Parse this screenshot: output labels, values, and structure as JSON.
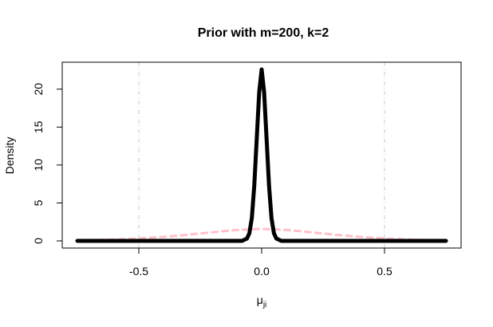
{
  "chart_data": {
    "type": "line",
    "title": "Prior with m=200, k=2",
    "xlabel": "μ",
    "xlabel_subscript": "ji",
    "ylabel": "Density",
    "xlim": [
      -0.75,
      0.75
    ],
    "ylim": [
      0,
      22.5
    ],
    "xticks": [
      {
        "value": -0.5,
        "label": "-0.5"
      },
      {
        "value": 0.0,
        "label": "0.0"
      },
      {
        "value": 0.5,
        "label": "0.5"
      }
    ],
    "yticks": [
      {
        "value": 0,
        "label": "0"
      },
      {
        "value": 5,
        "label": "5"
      },
      {
        "value": 10,
        "label": "10"
      },
      {
        "value": 15,
        "label": "15"
      },
      {
        "value": 20,
        "label": "20"
      }
    ],
    "vlines": [
      -0.5,
      0.5
    ],
    "grid": false,
    "series": [
      {
        "style": "solid",
        "color": "#000000",
        "x": [
          -0.75,
          -0.1,
          -0.08,
          -0.06,
          -0.05,
          -0.04,
          -0.03,
          -0.02,
          -0.01,
          0.0,
          0.01,
          0.02,
          0.03,
          0.04,
          0.05,
          0.06,
          0.08,
          0.1,
          0.75
        ],
        "y": [
          0.0,
          0.0,
          0.0,
          0.3,
          1.0,
          3.0,
          7.3,
          13.5,
          19.6,
          22.6,
          19.6,
          13.5,
          7.3,
          3.0,
          1.0,
          0.3,
          0.0,
          0.0,
          0.0
        ]
      },
      {
        "style": "dashed",
        "color": "#ffc0cb",
        "x": [
          -0.75,
          -0.6,
          -0.5,
          -0.4,
          -0.3,
          -0.2,
          -0.1,
          0.0,
          0.1,
          0.2,
          0.3,
          0.4,
          0.5,
          0.6,
          0.75
        ],
        "y": [
          0.07,
          0.17,
          0.31,
          0.52,
          0.81,
          1.14,
          1.44,
          1.58,
          1.44,
          1.14,
          0.81,
          0.52,
          0.31,
          0.17,
          0.07
        ]
      }
    ]
  }
}
